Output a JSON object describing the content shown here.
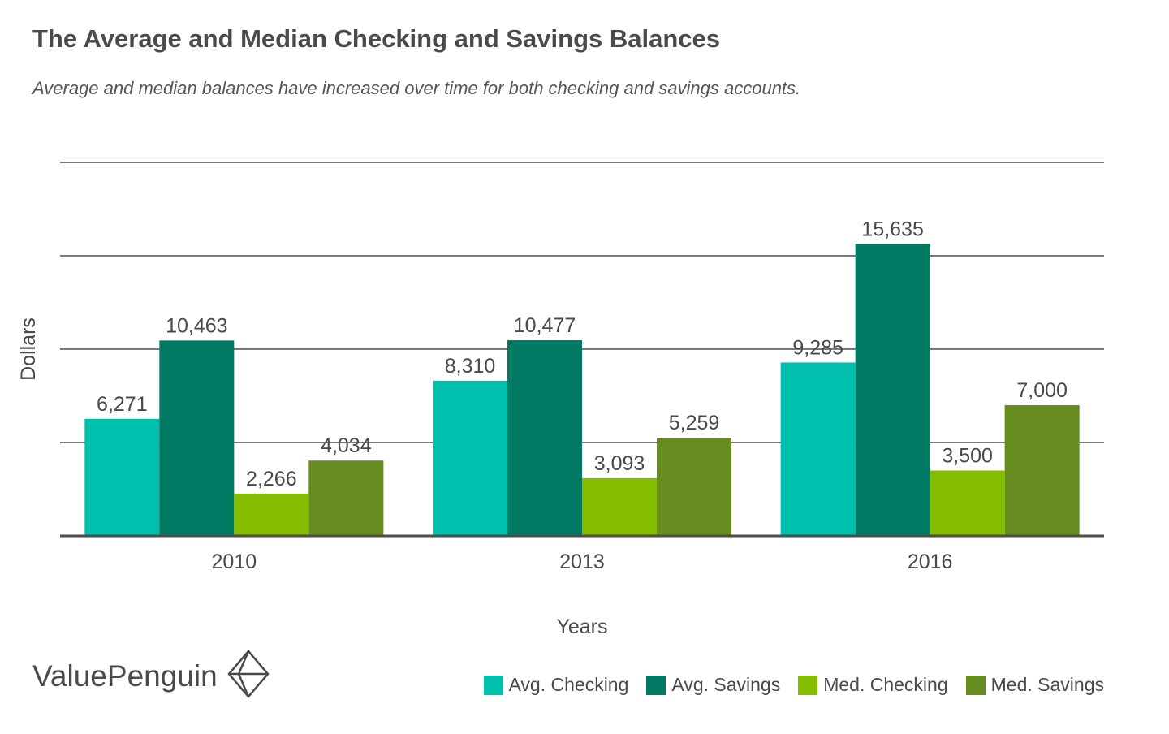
{
  "chart_data": {
    "type": "bar",
    "title": "The Average and Median Checking and Savings Balances",
    "subtitle": "Average and median balances have increased over time for both checking and savings accounts.",
    "xlabel": "Years",
    "ylabel": "Dollars",
    "categories": [
      "2010",
      "2013",
      "2016"
    ],
    "series": [
      {
        "name": "Avg. Checking",
        "color": "#00bfad",
        "values": [
          6271,
          8310,
          9285
        ],
        "labels": [
          "6,271",
          "8,310",
          "9,285"
        ]
      },
      {
        "name": "Avg. Savings",
        "color": "#007a63",
        "values": [
          10463,
          10477,
          15635
        ],
        "labels": [
          "10,463",
          "10,477",
          "15,635"
        ]
      },
      {
        "name": "Med. Checking",
        "color": "#84bd00",
        "values": [
          2266,
          3093,
          3500
        ],
        "labels": [
          "2,266",
          "3,093",
          "3,500"
        ]
      },
      {
        "name": "Med. Savings",
        "color": "#668c1f",
        "values": [
          4034,
          5259,
          7000
        ],
        "labels": [
          "4,034",
          "5,259",
          "7,000"
        ]
      }
    ],
    "ylim": [
      0,
      20000
    ],
    "grid": true,
    "legend": "bottom-right"
  },
  "brand": {
    "name": "ValuePenguin",
    "logo_icon": "penguin-diamond-icon"
  }
}
